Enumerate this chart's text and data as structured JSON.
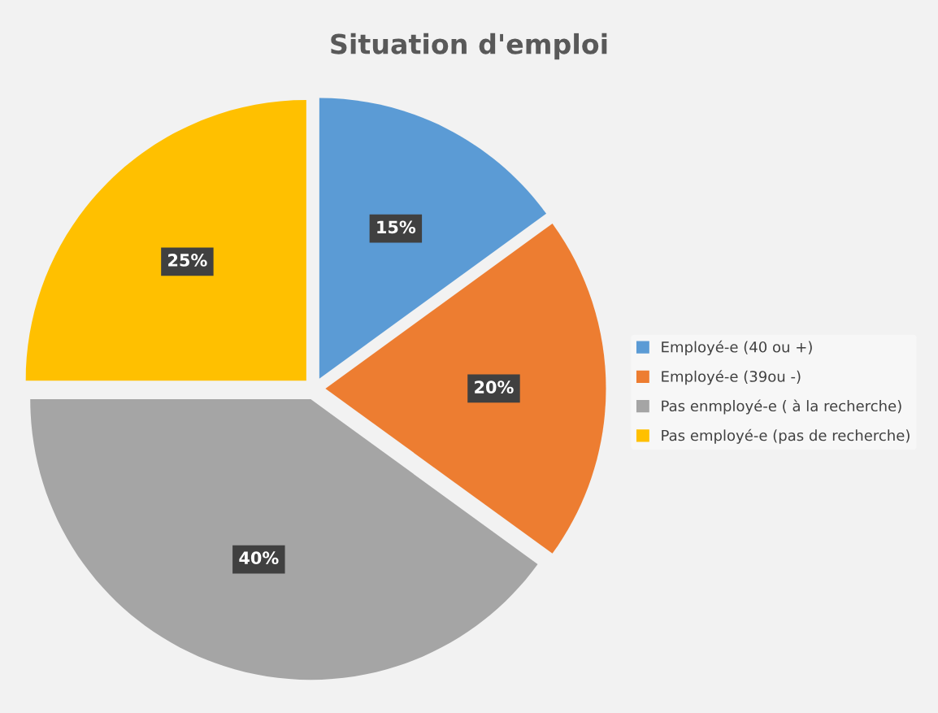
{
  "chart_data": {
    "type": "pie",
    "title": "Situation d'emploi",
    "categories": [
      "Employé-e (40 ou +)",
      "Employé-e (39ou -)",
      "Pas enmployé-e ( à la recherche)",
      "Pas employé-e (pas de recherche)"
    ],
    "values": [
      15,
      20,
      40,
      25
    ],
    "colors": [
      "#5b9bd5",
      "#ed7d31",
      "#a5a5a5",
      "#ffc000"
    ],
    "value_labels": [
      "15%",
      "20%",
      "40%",
      "25%"
    ],
    "legend": "right"
  }
}
